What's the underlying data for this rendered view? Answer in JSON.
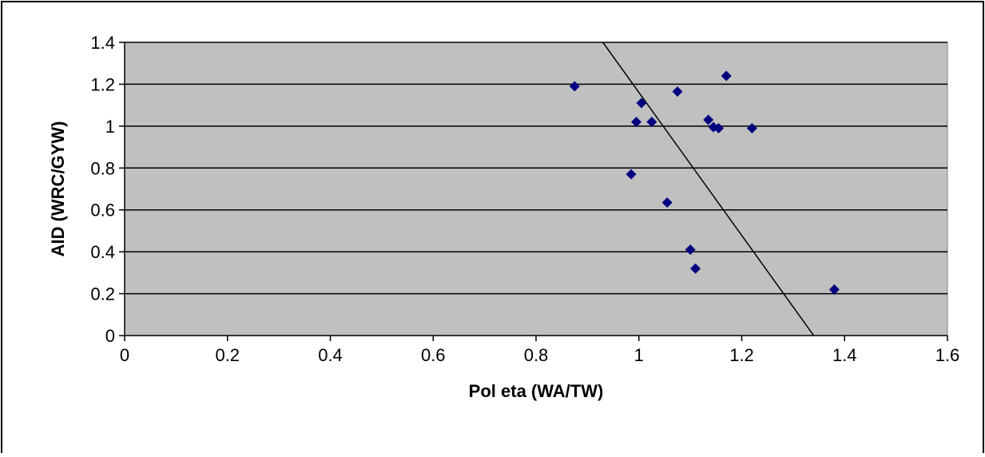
{
  "chart_data": {
    "type": "scatter",
    "title": "",
    "xlabel": "Pol eta (WA/TW)",
    "ylabel": "AID (WRC/GYW)",
    "xlim": [
      0,
      1.6
    ],
    "ylim": [
      0,
      1.4
    ],
    "x_ticks": [
      0,
      0.2,
      0.4,
      0.6,
      0.8,
      1,
      1.2,
      1.4,
      1.6
    ],
    "y_ticks": [
      0,
      0.2,
      0.4,
      0.6,
      0.8,
      1,
      1.2,
      1.4
    ],
    "x_tick_labels": [
      "0",
      "0.2",
      "0.4",
      "0.6",
      "0.8",
      "1",
      "1.2",
      "1.4",
      "1.6"
    ],
    "y_tick_labels": [
      "0",
      "0.2",
      "0.4",
      "0.6",
      "0.8",
      "1",
      "1.2",
      "1.4"
    ],
    "grid": "horizontal",
    "legend": "none",
    "plot_background": "#c0c0c0",
    "series": [
      {
        "marker": "diamond",
        "color": "#00007f",
        "points": [
          {
            "x": 0.875,
            "y": 1.19
          },
          {
            "x": 0.985,
            "y": 0.77
          },
          {
            "x": 0.995,
            "y": 1.02
          },
          {
            "x": 1.005,
            "y": 1.11
          },
          {
            "x": 1.025,
            "y": 1.02
          },
          {
            "x": 1.055,
            "y": 0.635
          },
          {
            "x": 1.075,
            "y": 1.165
          },
          {
            "x": 1.1,
            "y": 0.41
          },
          {
            "x": 1.11,
            "y": 0.32
          },
          {
            "x": 1.135,
            "y": 1.03
          },
          {
            "x": 1.145,
            "y": 0.995
          },
          {
            "x": 1.155,
            "y": 0.99
          },
          {
            "x": 1.17,
            "y": 1.24
          },
          {
            "x": 1.22,
            "y": 0.99
          },
          {
            "x": 1.38,
            "y": 0.22
          }
        ]
      }
    ],
    "trendline": {
      "type": "linear",
      "x1": 0.93,
      "y1": 1.4,
      "x2": 1.34,
      "y2": 0.0,
      "color": "#000000"
    }
  }
}
